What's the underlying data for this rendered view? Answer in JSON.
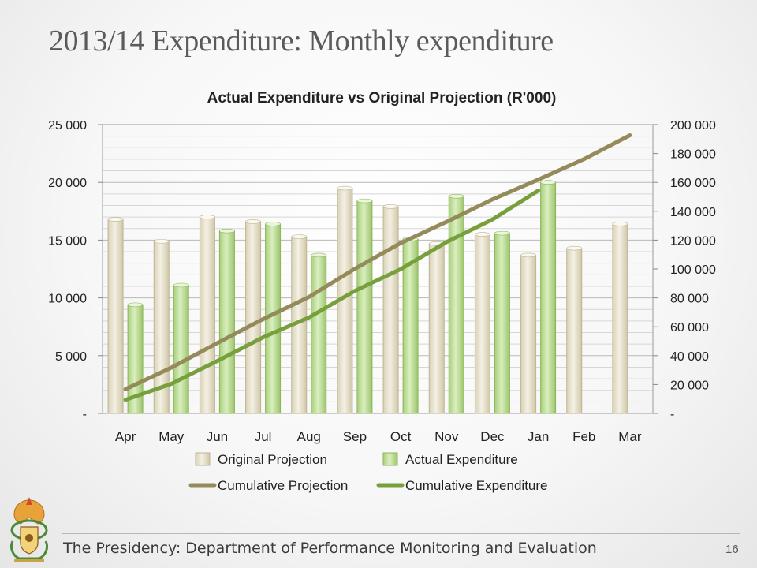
{
  "slide": {
    "title": "2013/14 Expenditure: Monthly expenditure",
    "footer": "The Presidency: Department of Performance Monitoring and Evaluation",
    "page_number": "16"
  },
  "colors": {
    "projection_bar": "#e8e2cf",
    "actual_bar": "#c5e0a3",
    "cumulative_projection": "#948a5a",
    "cumulative_expenditure": "#77a03c"
  },
  "chart_data": {
    "type": "bar",
    "title": "Actual Expenditure vs Original Projection (R'000)",
    "categories": [
      "Apr",
      "May",
      "Jun",
      "Jul",
      "Aug",
      "Sep",
      "Oct",
      "Nov",
      "Dec",
      "Jan",
      "Feb",
      "Mar"
    ],
    "y_left": {
      "range": [
        0,
        25000
      ],
      "ticks": [
        0,
        5000,
        10000,
        15000,
        20000,
        25000
      ],
      "tick_labels": [
        "-",
        "5 000",
        "10 000",
        "15 000",
        "20 000",
        "25 000"
      ]
    },
    "y_right": {
      "range": [
        0,
        200000
      ],
      "ticks": [
        0,
        20000,
        40000,
        60000,
        80000,
        100000,
        120000,
        140000,
        160000,
        180000,
        200000
      ],
      "tick_labels": [
        "-",
        "20 000",
        "40 000",
        "60 000",
        "80 000",
        "100 000",
        "120 000",
        "140 000",
        "160 000",
        "180 000",
        "200 000"
      ]
    },
    "grid": true,
    "legend_position": "bottom",
    "series": [
      {
        "name": "Original Projection",
        "kind": "bar",
        "axis": "left",
        "values": [
          16800,
          14900,
          17000,
          16600,
          15300,
          19500,
          17900,
          14700,
          15500,
          13700,
          14300,
          16400
        ]
      },
      {
        "name": "Actual Expenditure",
        "kind": "bar",
        "axis": "left",
        "values": [
          9400,
          11100,
          15800,
          16400,
          13700,
          18400,
          15100,
          18800,
          15600,
          20000,
          null,
          null
        ]
      },
      {
        "name": "Cumulative Projection",
        "kind": "line",
        "axis": "right",
        "values": [
          16800,
          31700,
          48700,
          65300,
          80600,
          100100,
          118000,
          132700,
          148200,
          161900,
          176200,
          192600
        ]
      },
      {
        "name": "Cumulative Expenditure",
        "kind": "line",
        "axis": "right",
        "values": [
          9400,
          20500,
          36300,
          52700,
          66400,
          84800,
          99900,
          118700,
          134300,
          154300,
          null,
          null
        ]
      }
    ]
  }
}
